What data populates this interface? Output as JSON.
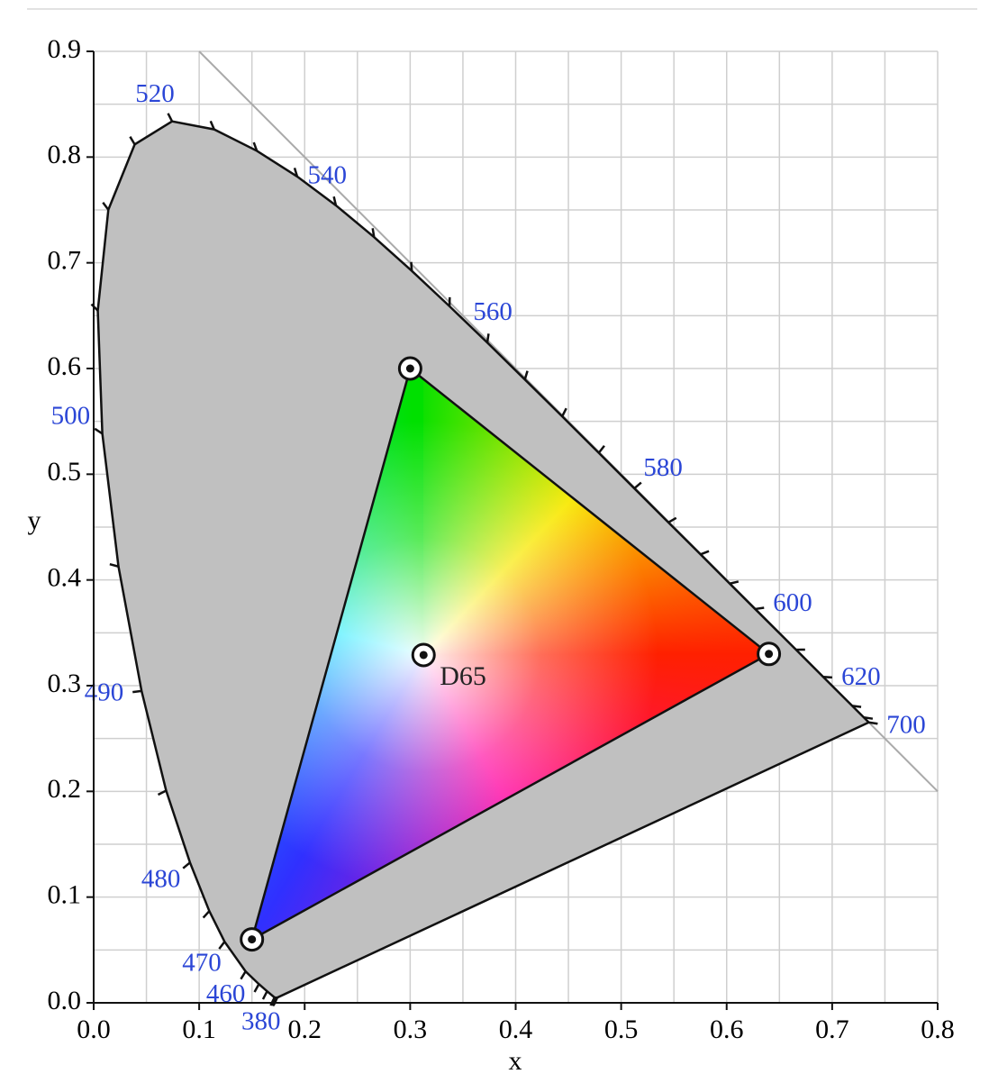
{
  "chart_data": {
    "type": "chromaticity",
    "x_label": "x",
    "y_label": "y",
    "xlim": [
      0,
      0.8
    ],
    "ylim": [
      0,
      0.9
    ],
    "xticks": [
      {
        "value": 0,
        "label": "0.0"
      },
      0.1,
      0.2,
      0.3,
      0.4,
      0.5,
      0.6,
      0.7,
      0.8
    ],
    "yticks": [
      {
        "value": 0,
        "label": "0.0"
      },
      0.1,
      0.2,
      0.3,
      0.4,
      0.5,
      0.6,
      0.7,
      0.8,
      0.9
    ],
    "xgrid": [
      0,
      0.05,
      0.1,
      0.15,
      0.2,
      0.25,
      0.3,
      0.35,
      0.4,
      0.45,
      0.5,
      0.55,
      0.6,
      0.65,
      0.7,
      0.75,
      0.8
    ],
    "ygrid": [
      0,
      0.05,
      0.1,
      0.15,
      0.2,
      0.25,
      0.3,
      0.35,
      0.4,
      0.45,
      0.5,
      0.55,
      0.6,
      0.65,
      0.7,
      0.75,
      0.8,
      0.85,
      0.9
    ],
    "reference_line": {
      "x": [
        0.1,
        0.8
      ],
      "y": [
        0.9,
        0.2
      ]
    },
    "locus": {
      "x": [
        0.1741,
        0.1733,
        0.1714,
        0.1644,
        0.1566,
        0.144,
        0.1241,
        0.1096,
        0.0913,
        0.0687,
        0.0454,
        0.0235,
        0.0082,
        0.0039,
        0.0139,
        0.0389,
        0.0743,
        0.1142,
        0.1547,
        0.1929,
        0.2296,
        0.2658,
        0.3016,
        0.3373,
        0.3731,
        0.4087,
        0.4441,
        0.4788,
        0.5125,
        0.5448,
        0.5752,
        0.6029,
        0.627,
        0.6658,
        0.6915,
        0.719,
        0.73,
        0.7347
      ],
      "y": [
        0.005,
        0.0048,
        0.0051,
        0.0109,
        0.0177,
        0.0297,
        0.0578,
        0.0868,
        0.1327,
        0.2007,
        0.295,
        0.4127,
        0.5384,
        0.6548,
        0.7502,
        0.812,
        0.8338,
        0.8262,
        0.8059,
        0.7816,
        0.7543,
        0.7243,
        0.6923,
        0.6589,
        0.6245,
        0.5896,
        0.5547,
        0.5202,
        0.4866,
        0.4544,
        0.4242,
        0.3965,
        0.3725,
        0.334,
        0.3083,
        0.2809,
        0.27,
        0.2653
      ]
    },
    "wavelength_labels": [
      {
        "label": "380",
        "x": 0.1741,
        "y": 0.005
      },
      {
        "label": "460",
        "x": 0.144,
        "y": 0.0297
      },
      {
        "label": "470",
        "x": 0.1241,
        "y": 0.0578
      },
      {
        "label": "480",
        "x": 0.0913,
        "y": 0.1327
      },
      {
        "label": "490",
        "x": 0.0454,
        "y": 0.295
      },
      {
        "label": "500",
        "x": 0.0082,
        "y": 0.5384
      },
      {
        "label": "520",
        "x": 0.0743,
        "y": 0.8338
      },
      {
        "label": "540",
        "x": 0.2296,
        "y": 0.7543
      },
      {
        "label": "560",
        "x": 0.3731,
        "y": 0.6245
      },
      {
        "label": "580",
        "x": 0.5125,
        "y": 0.4866
      },
      {
        "label": "600",
        "x": 0.627,
        "y": 0.3725
      },
      {
        "label": "620",
        "x": 0.6915,
        "y": 0.3083
      },
      {
        "label": "700",
        "x": 0.7347,
        "y": 0.2653
      }
    ],
    "primaries": {
      "x": [
        0.64,
        0.3,
        0.15
      ],
      "y": [
        0.33,
        0.6,
        0.06
      ]
    },
    "white_point": {
      "name": "D65",
      "x": 0.3127,
      "y": 0.329
    }
  }
}
